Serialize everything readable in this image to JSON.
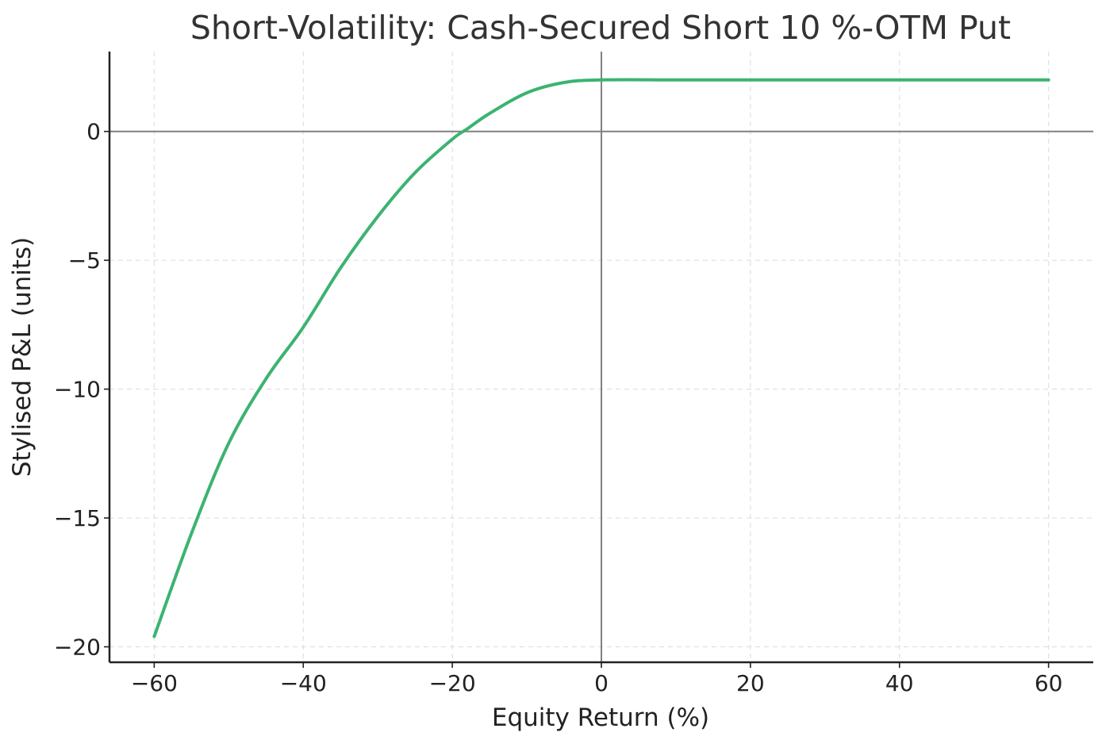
{
  "chart_data": {
    "type": "line",
    "title": "Short-Volatility: Cash-Secured Short 10 %-OTM Put",
    "xlabel": "Equity Return (%)",
    "ylabel": "Stylised P&L (units)",
    "xlim": [
      -66,
      66
    ],
    "ylim": [
      -20.6,
      3.1
    ],
    "xticks": [
      -60,
      -40,
      -20,
      0,
      20,
      40,
      60
    ],
    "xtick_labels": [
      "−60",
      "−40",
      "−20",
      "0",
      "20",
      "40",
      "60"
    ],
    "yticks": [
      -20,
      -15,
      -10,
      -5,
      0
    ],
    "ytick_labels": [
      "−20",
      "−15",
      "−10",
      "−5",
      "0"
    ],
    "grid": true,
    "reference_lines": {
      "x": 0,
      "y": 0
    },
    "series": [
      {
        "color": "#3cb371",
        "x": [
          -60,
          -55,
          -50,
          -45,
          -40,
          -35,
          -30,
          -25,
          -20,
          -18,
          -15,
          -10,
          -5,
          0,
          10,
          20,
          30,
          40,
          50,
          60
        ],
        "y": [
          -19.6,
          -15.6,
          -12.1,
          -9.6,
          -7.6,
          -5.3,
          -3.3,
          -1.6,
          -0.3,
          0.1,
          0.7,
          1.5,
          1.9,
          2.0,
          2.0,
          2.0,
          2.0,
          2.0,
          2.0,
          2.0
        ]
      }
    ]
  }
}
